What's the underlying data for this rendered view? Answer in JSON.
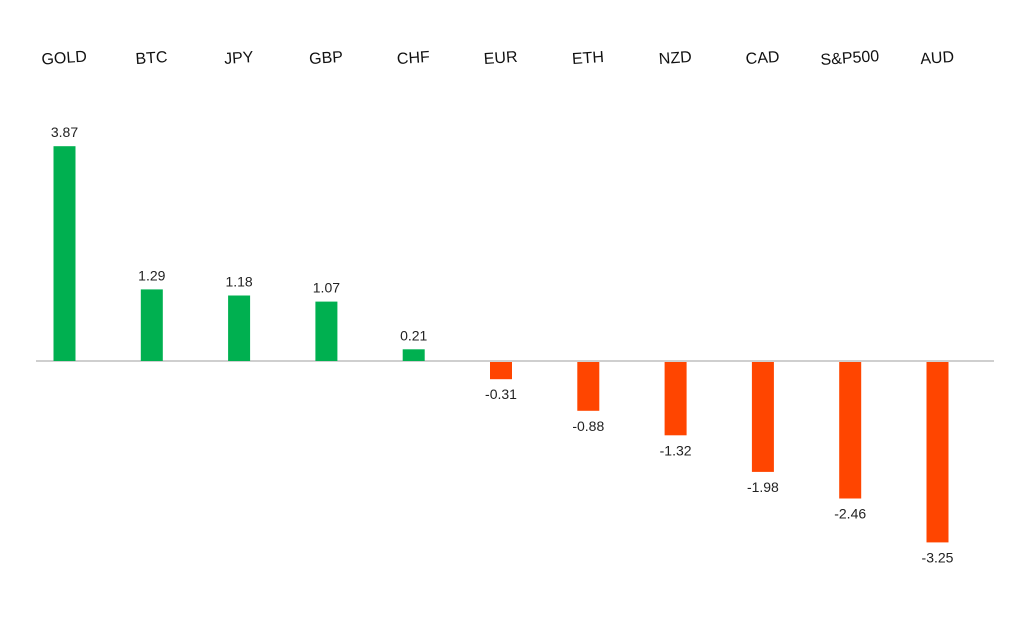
{
  "chart_data": {
    "type": "bar",
    "categories": [
      "GOLD",
      "BTC",
      "JPY",
      "GBP",
      "CHF",
      "EUR",
      "ETH",
      "NZD",
      "CAD",
      "S&P500",
      "AUD"
    ],
    "values": [
      3.87,
      1.29,
      1.18,
      1.07,
      0.21,
      -0.31,
      -0.88,
      -1.32,
      -1.98,
      -2.46,
      -3.25
    ],
    "value_labels": [
      "3.87",
      "1.29",
      "1.18",
      "1.07",
      "0.21",
      "-0.31",
      "-0.88",
      "-1.32",
      "-1.98",
      "-2.46",
      "-3.25"
    ],
    "title": "",
    "xlabel": "",
    "ylabel": "",
    "ylim": [
      -3.25,
      3.87
    ],
    "grid": false,
    "legend": "none",
    "category_labels_position": "top",
    "colors": {
      "positive": "#00b050",
      "negative": "#ff4500",
      "zero_line": "#bfbfbf"
    }
  }
}
